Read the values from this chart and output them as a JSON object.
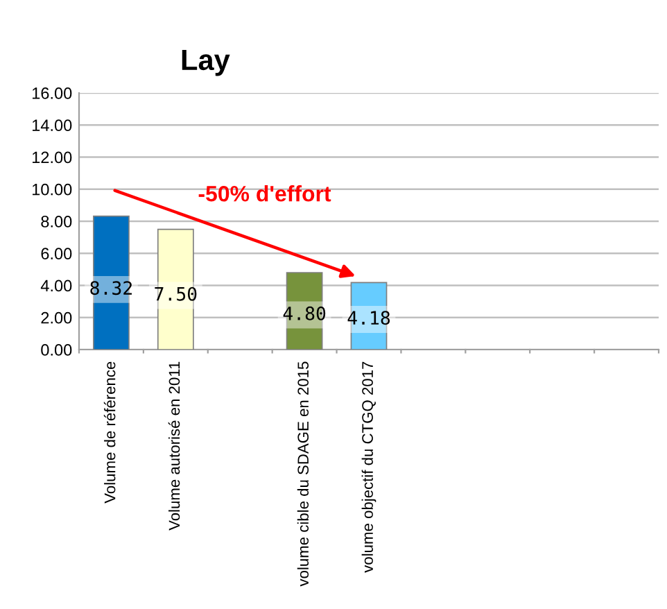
{
  "chart_data": {
    "type": "bar",
    "title": "Lay",
    "categories": [
      "Volume de référence",
      "Volume autorisé en 2011",
      null,
      "volume cible du SDAGE en 2015",
      "volume objectif du CTGQ 2017",
      null,
      null,
      null,
      null
    ],
    "values": [
      8.32,
      7.5,
      null,
      4.8,
      4.18,
      null,
      null,
      null,
      null
    ],
    "colors": [
      "#0070c0",
      "#ffffcc",
      "#ffffff",
      "#77933c",
      "#66ccff",
      "#ffffff",
      "#ffffff",
      "#ffffff",
      "#ffffff"
    ],
    "value_labels": [
      "8.32",
      "7.50",
      null,
      "4.80",
      "4.18",
      null,
      null,
      null,
      null
    ],
    "ylim": [
      0,
      16
    ],
    "yticks": [
      {
        "value": 0,
        "label": "0.00"
      },
      {
        "value": 2,
        "label": "2.00"
      },
      {
        "value": 4,
        "label": "4.00"
      },
      {
        "value": 6,
        "label": "6.00"
      },
      {
        "value": 8,
        "label": "8.00"
      },
      {
        "value": 10,
        "label": "10.00"
      },
      {
        "value": 12,
        "label": "12.00"
      },
      {
        "value": 14,
        "label": "14.00"
      },
      {
        "value": 16,
        "label": "16.00"
      }
    ],
    "annotations": [
      "-50% d'effort"
    ],
    "grid": "y",
    "legend": false
  }
}
